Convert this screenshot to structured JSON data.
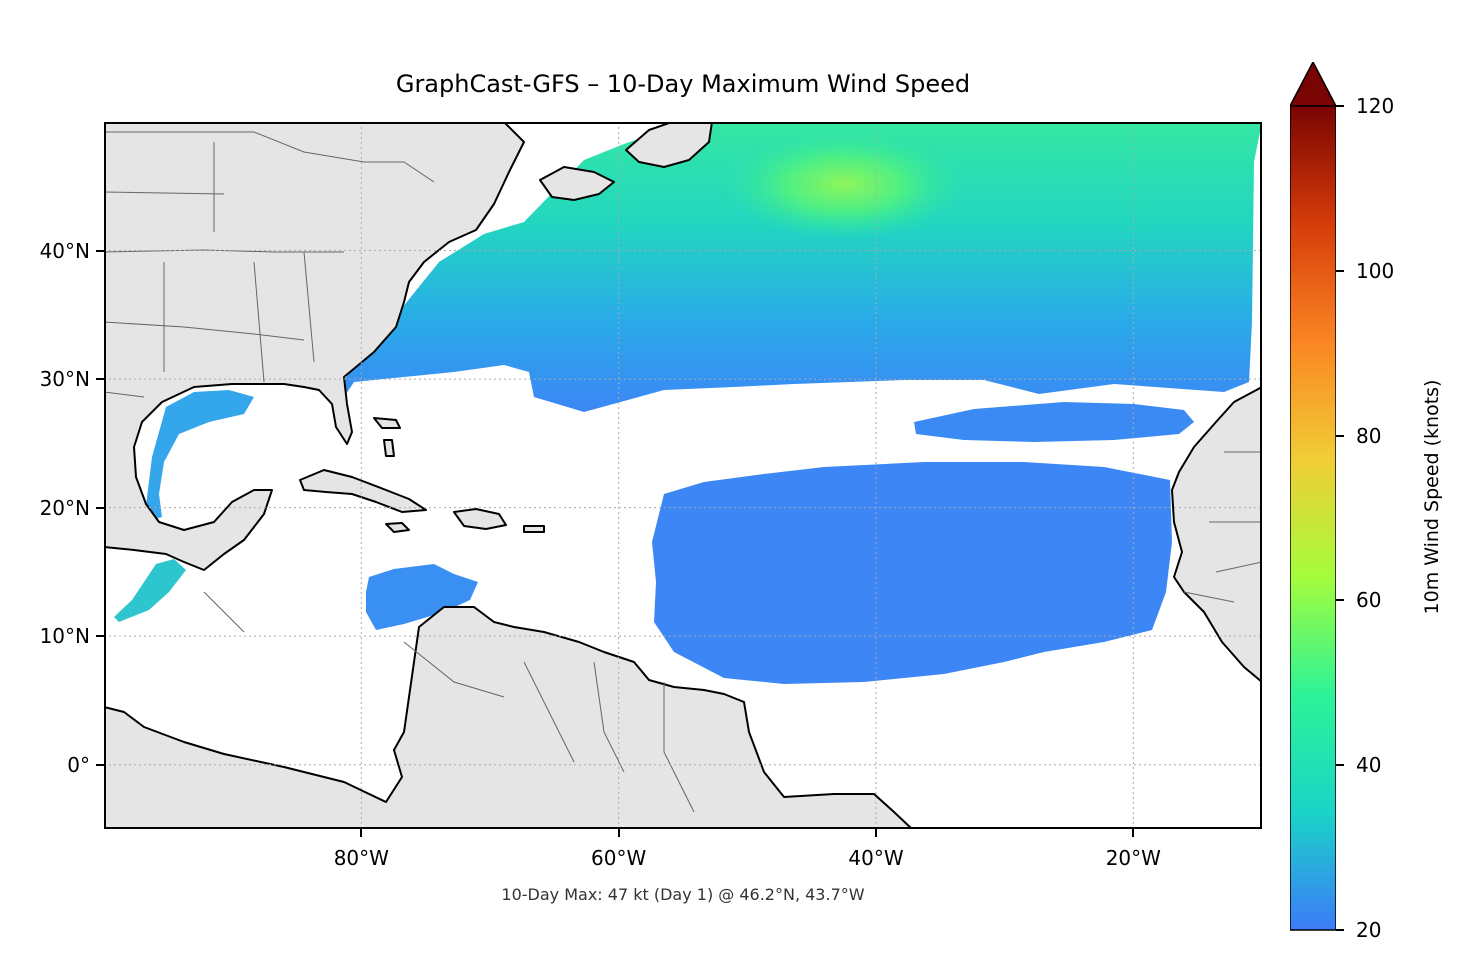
{
  "title": "GraphCast-GFS – 10-Day Maximum Wind Speed",
  "footer": "10-Day Max: 47 kt (Day 1) @ 46.2°N, 43.7°W",
  "map": {
    "projection": "PlateCarree",
    "lon_range": [
      -100,
      -10
    ],
    "lat_range": [
      -5,
      50
    ],
    "land_color": "#e5e5e5",
    "coast_color": "#000000",
    "border_color": "#666666",
    "grid": true,
    "wind_fill_threshold_kt": 20,
    "peak": {
      "value_kt": 47,
      "day": 1,
      "lat": 46.2,
      "lon": -43.7
    }
  },
  "xaxis": {
    "ticks": [
      {
        "lon": -80,
        "label": "80°W"
      },
      {
        "lon": -60,
        "label": "60°W"
      },
      {
        "lon": -40,
        "label": "40°W"
      },
      {
        "lon": -20,
        "label": "20°W"
      }
    ]
  },
  "yaxis": {
    "ticks": [
      {
        "lat": 40,
        "label": "40°N"
      },
      {
        "lat": 30,
        "label": "30°N"
      },
      {
        "lat": 20,
        "label": "20°N"
      },
      {
        "lat": 10,
        "label": "10°N"
      },
      {
        "lat": 0,
        "label": "0°"
      }
    ]
  },
  "colorbar": {
    "label": "10m Wind Speed (knots)",
    "range": [
      20,
      120
    ],
    "extend": "max",
    "colormap": "turbo",
    "ticks": [
      {
        "value": 20,
        "label": "20"
      },
      {
        "value": 40,
        "label": "40"
      },
      {
        "value": 60,
        "label": "60"
      },
      {
        "value": 80,
        "label": "80"
      },
      {
        "value": 100,
        "label": "100"
      },
      {
        "value": 120,
        "label": "120"
      }
    ],
    "stops": [
      "#3c7bf8",
      "#1ad4c7",
      "#2df397",
      "#a5fc3c",
      "#f1cd36",
      "#fb8523",
      "#d63c0a",
      "#7a0403"
    ]
  }
}
